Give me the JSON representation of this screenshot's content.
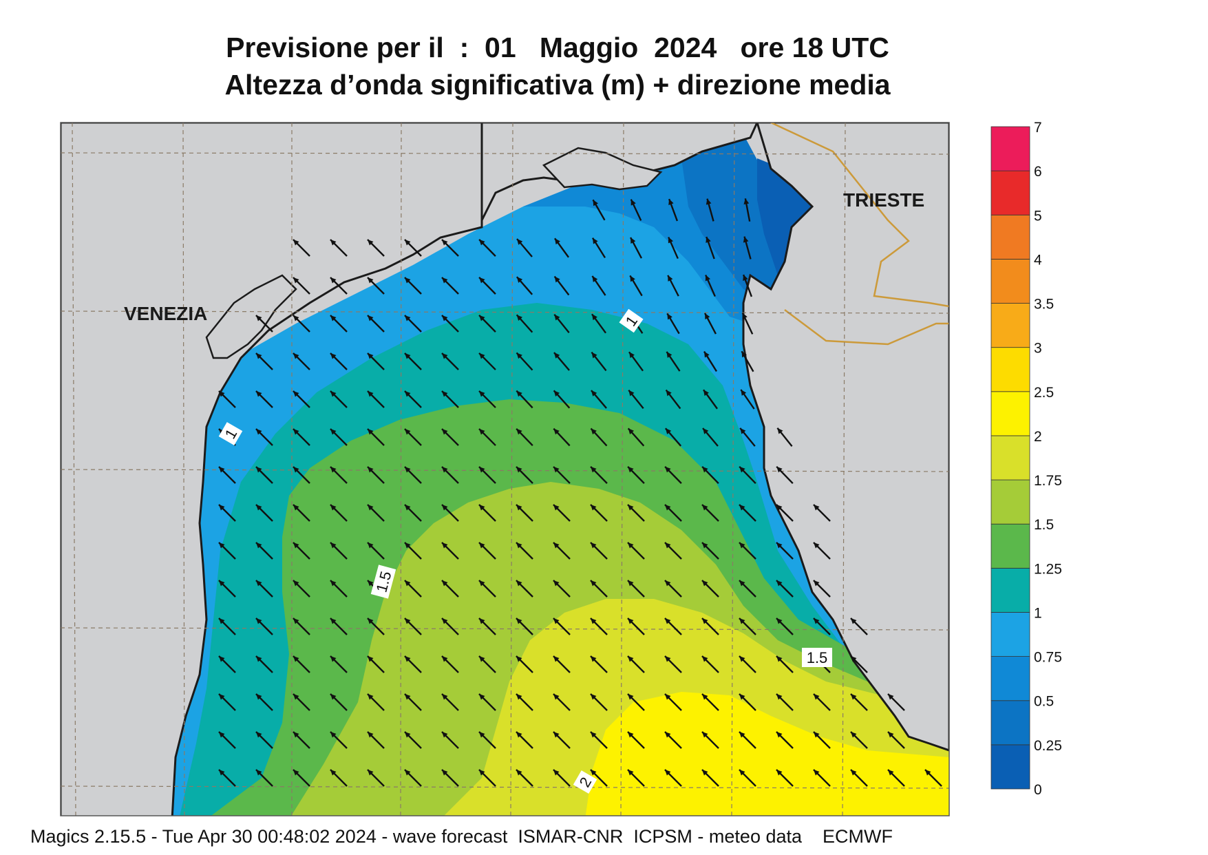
{
  "title": {
    "line1": "Previsione per il  :  01   Maggio  2024   ore 18 UTC",
    "line2": "Altezza d’onda significativa (m) + direzione media"
  },
  "cities": {
    "venezia": "VENEZIA",
    "trieste": "TRIESTE"
  },
  "contour_labels": [
    "1",
    "1",
    "1.5",
    "1.5",
    "2"
  ],
  "colorbar": {
    "levels": [
      "0",
      "0.25",
      "0.5",
      "0.75",
      "1",
      "1.25",
      "1.5",
      "1.75",
      "2",
      "2.5",
      "3",
      "3.5",
      "4",
      "5",
      "6",
      "7"
    ],
    "colors": [
      "#0a5fb4",
      "#0c74c4",
      "#1089d6",
      "#1ca3e4",
      "#08ada8",
      "#5bb84b",
      "#a5cc38",
      "#d9e02a",
      "#fdf200",
      "#fddc00",
      "#f8ab18",
      "#f28c1c",
      "#f07a22",
      "#e82a2a",
      "#ec1c5a"
    ]
  },
  "map_colors": {
    "land": "#cfd0d2",
    "coast": "#1b1b1b",
    "border": "#cc9a3a",
    "grid": "#8a7a66"
  },
  "legend_units": "m",
  "footer": "Magics 2.15.5 - Tue Apr 30 00:48:02 2024 - wave forecast  ISMAR-CNR  ICPSM - meteo data    ECMWF"
}
